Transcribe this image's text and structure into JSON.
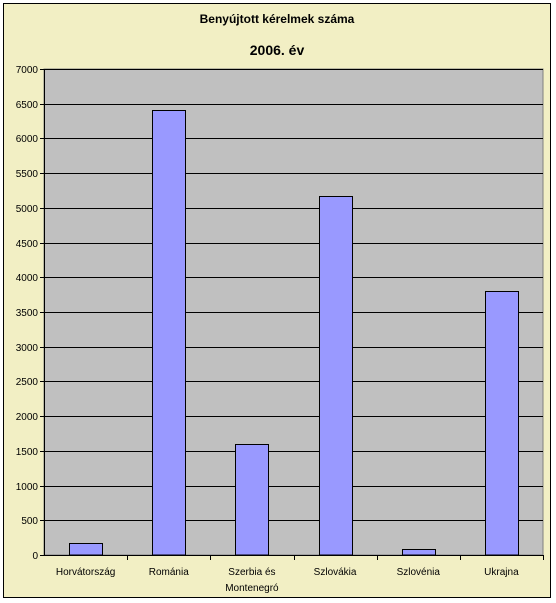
{
  "chart_data": {
    "type": "bar",
    "title": "Benyújtott kérelmek száma",
    "subtitle": "2006. év",
    "categories": [
      [
        "Horvátország"
      ],
      [
        "Románia"
      ],
      [
        "Szerbia és",
        "Montenegró"
      ],
      [
        "Szlovákia"
      ],
      [
        "Szlovénia"
      ],
      [
        "Ukrajna"
      ]
    ],
    "values": [
      180,
      6410,
      1600,
      5170,
      80,
      3800
    ],
    "ylim": [
      0,
      7000
    ],
    "y_ticks": [
      "0",
      "500",
      "1000",
      "1500",
      "2000",
      "2500",
      "3000",
      "3500",
      "4000",
      "4500",
      "5000",
      "5500",
      "6000",
      "6500",
      "7000"
    ],
    "grid": true,
    "legend": "none",
    "colors": {
      "bar": "#9999ff",
      "plot_background": "#c0c0c0",
      "chart_background": "#f2efc4",
      "gridline": "#000000"
    }
  }
}
